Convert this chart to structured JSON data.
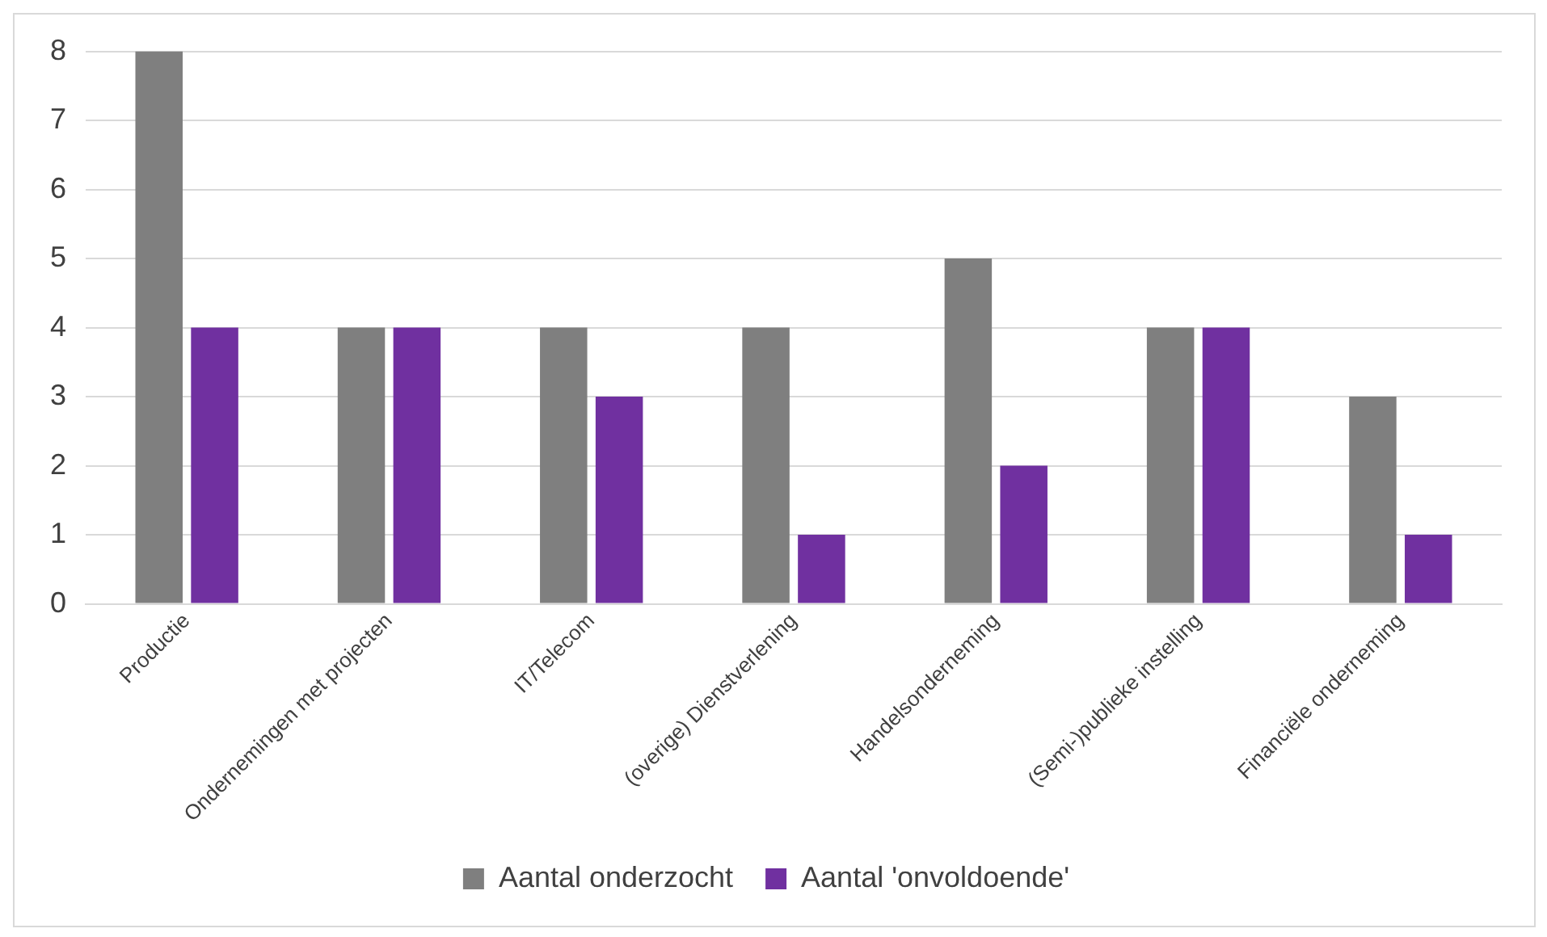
{
  "chart_data": {
    "type": "bar",
    "categories": [
      "Productie",
      "Ondernemingen met projecten",
      "IT/Telecom",
      "(overige) Dienstverlening",
      "Handelsonderneming",
      "(Semi-)publieke instelling",
      "Financiële onderneming"
    ],
    "series": [
      {
        "name": "Aantal onderzocht",
        "color": "#7f7f7f",
        "values": [
          8,
          4,
          4,
          4,
          5,
          4,
          3
        ]
      },
      {
        "name": "Aantal 'onvoldoende'",
        "color": "#7030a0",
        "values": [
          4,
          4,
          3,
          1,
          2,
          4,
          1
        ]
      }
    ],
    "ylim": [
      0,
      8
    ],
    "yticks": [
      0,
      1,
      2,
      3,
      4,
      5,
      6,
      7,
      8
    ],
    "grid": "y",
    "legend": "bottom"
  }
}
